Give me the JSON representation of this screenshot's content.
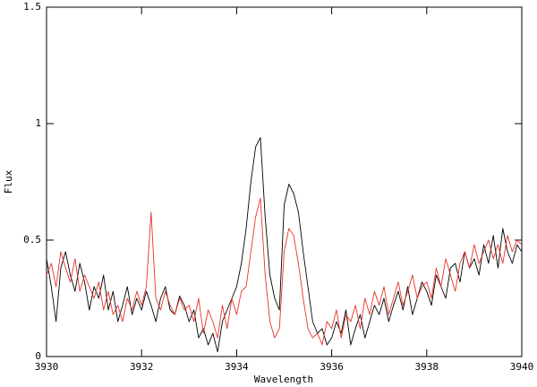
{
  "chart_data": {
    "type": "line",
    "x_label": "Wavelength",
    "y_label": "Flux",
    "x": [
      3930,
      3930.1,
      3930.2,
      3930.3,
      3930.4,
      3930.5,
      3930.6,
      3930.7,
      3930.8,
      3930.9,
      3931,
      3931.1,
      3931.2,
      3931.3,
      3931.4,
      3931.5,
      3931.6,
      3931.7,
      3931.8,
      3931.9,
      3932,
      3932.1,
      3932.2,
      3932.3,
      3932.4,
      3932.5,
      3932.6,
      3932.7,
      3932.8,
      3932.9,
      3933,
      3933.1,
      3933.2,
      3933.3,
      3933.4,
      3933.5,
      3933.6,
      3933.7,
      3933.8,
      3933.9,
      3934,
      3934.1,
      3934.2,
      3934.3,
      3934.4,
      3934.5,
      3934.6,
      3934.7,
      3934.8,
      3934.9,
      3935,
      3935.1,
      3935.2,
      3935.3,
      3935.4,
      3935.5,
      3935.6,
      3935.7,
      3935.8,
      3935.9,
      3936,
      3936.1,
      3936.2,
      3936.3,
      3936.4,
      3936.5,
      3936.6,
      3936.7,
      3936.8,
      3936.9,
      3937,
      3937.1,
      3937.2,
      3937.3,
      3937.4,
      3937.5,
      3937.6,
      3937.7,
      3937.8,
      3937.9,
      3938,
      3938.1,
      3938.2,
      3938.3,
      3938.4,
      3938.5,
      3938.6,
      3938.7,
      3938.8,
      3938.9,
      3939,
      3939.1,
      3939.2,
      3939.3,
      3939.4,
      3939.5,
      3939.6,
      3939.7,
      3939.8,
      3939.9,
      3940
    ],
    "series": [
      {
        "color": "#000000",
        "values": [
          0.42,
          0.3,
          0.15,
          0.38,
          0.45,
          0.35,
          0.28,
          0.4,
          0.32,
          0.2,
          0.3,
          0.25,
          0.35,
          0.2,
          0.28,
          0.15,
          0.22,
          0.3,
          0.18,
          0.25,
          0.2,
          0.28,
          0.22,
          0.15,
          0.25,
          0.3,
          0.2,
          0.18,
          0.26,
          0.22,
          0.15,
          0.2,
          0.08,
          0.12,
          0.05,
          0.1,
          0.02,
          0.15,
          0.2,
          0.25,
          0.3,
          0.4,
          0.55,
          0.75,
          0.9,
          0.94,
          0.6,
          0.35,
          0.25,
          0.2,
          0.65,
          0.74,
          0.7,
          0.62,
          0.45,
          0.3,
          0.15,
          0.1,
          0.12,
          0.05,
          0.08,
          0.15,
          0.1,
          0.2,
          0.05,
          0.12,
          0.18,
          0.08,
          0.15,
          0.22,
          0.18,
          0.25,
          0.15,
          0.22,
          0.28,
          0.2,
          0.3,
          0.18,
          0.25,
          0.32,
          0.28,
          0.22,
          0.35,
          0.3,
          0.25,
          0.38,
          0.4,
          0.32,
          0.45,
          0.38,
          0.42,
          0.35,
          0.48,
          0.4,
          0.52,
          0.38,
          0.55,
          0.45,
          0.4,
          0.48,
          0.45
        ]
      },
      {
        "color": "#e8322a",
        "values": [
          0.35,
          0.4,
          0.3,
          0.45,
          0.38,
          0.32,
          0.42,
          0.28,
          0.35,
          0.3,
          0.25,
          0.32,
          0.2,
          0.28,
          0.18,
          0.22,
          0.15,
          0.25,
          0.2,
          0.28,
          0.22,
          0.3,
          0.62,
          0.25,
          0.2,
          0.28,
          0.22,
          0.18,
          0.25,
          0.2,
          0.22,
          0.15,
          0.25,
          0.1,
          0.2,
          0.15,
          0.08,
          0.22,
          0.12,
          0.25,
          0.18,
          0.28,
          0.3,
          0.45,
          0.6,
          0.68,
          0.35,
          0.15,
          0.08,
          0.12,
          0.45,
          0.55,
          0.52,
          0.4,
          0.25,
          0.12,
          0.08,
          0.1,
          0.05,
          0.15,
          0.12,
          0.2,
          0.08,
          0.18,
          0.15,
          0.22,
          0.12,
          0.25,
          0.18,
          0.28,
          0.22,
          0.3,
          0.18,
          0.25,
          0.32,
          0.22,
          0.28,
          0.35,
          0.25,
          0.3,
          0.32,
          0.25,
          0.38,
          0.3,
          0.42,
          0.35,
          0.28,
          0.4,
          0.45,
          0.38,
          0.48,
          0.4,
          0.45,
          0.5,
          0.42,
          0.48,
          0.4,
          0.52,
          0.45,
          0.5,
          0.48
        ]
      }
    ],
    "xlim": [
      3930,
      3940
    ],
    "xticks": [
      3930,
      3932,
      3934,
      3936,
      3938,
      3940
    ],
    "ylim": [
      0,
      1.5
    ],
    "yticks": [
      0,
      0.5,
      1,
      1.5
    ]
  }
}
